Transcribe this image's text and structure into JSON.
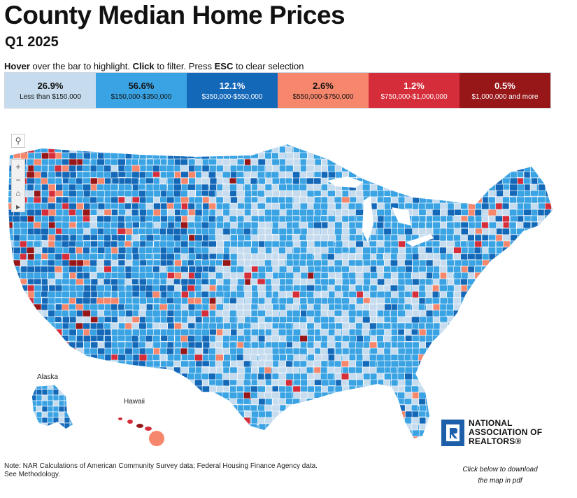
{
  "title": "County Median Home Prices",
  "subtitle": "Q1 2025",
  "instructions": {
    "hover": "Hover",
    "t1": " over the bar to highlight. ",
    "click": "Click",
    "t2": " to filter. Press ",
    "esc": "ESC",
    "t3": " to clear selection"
  },
  "legend": [
    {
      "pct": "26.9%",
      "range": "Less than $150,000",
      "color": "#c6dcee",
      "text": "#111111"
    },
    {
      "pct": "56.6%",
      "range": "$150,000-$350,000",
      "color": "#3aa3e3",
      "text": "#111111"
    },
    {
      "pct": "12.1%",
      "range": "$350,000-$550,000",
      "color": "#1468b8",
      "text": "#ffffff"
    },
    {
      "pct": "2.6%",
      "range": "$550,000-$750,000",
      "color": "#f7876c",
      "text": "#111111"
    },
    {
      "pct": "1.2%",
      "range": "$750,000-$1,000,000",
      "color": "#d62d3a",
      "text": "#ffffff"
    },
    {
      "pct": "0.5%",
      "range": "$1,000,000 and more",
      "color": "#971719",
      "text": "#ffffff"
    }
  ],
  "map_labels": {
    "alaska": "Alaska",
    "hawaii": "Hawaii"
  },
  "icons": {
    "search": "search-icon",
    "zoom_in": "plus-icon",
    "zoom_out": "minus-icon",
    "home": "home-icon",
    "play": "play-icon"
  },
  "logo": {
    "line1": "NATIONAL",
    "line2": "ASSOCIATION OF",
    "line3": "REALTORS®"
  },
  "note": {
    "source": "Note: NAR Calculations of American Community Survey data; Federal Housing Finance Agency data.",
    "methodology": "See Methodology."
  },
  "download": "Click below to download the map in pdf"
}
